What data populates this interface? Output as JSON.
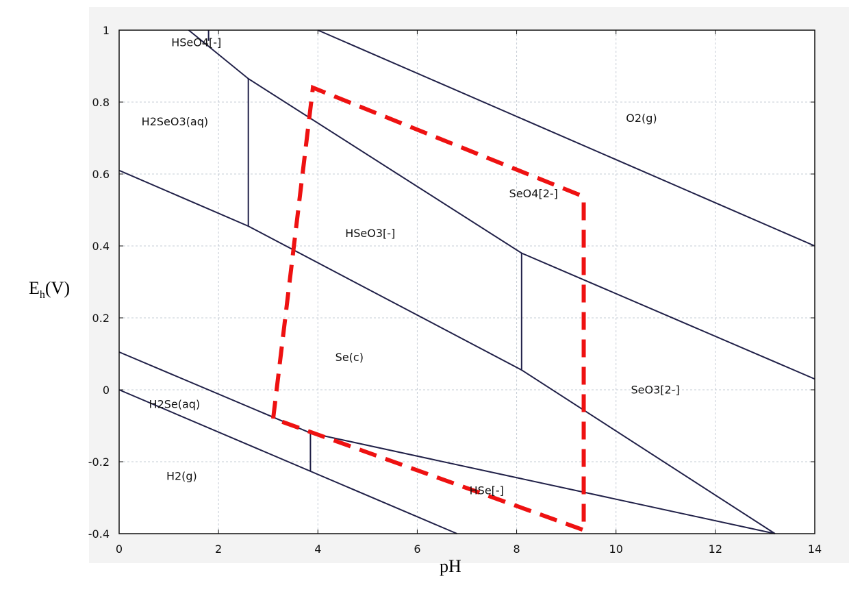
{
  "chart_data": {
    "type": "line",
    "xlabel": "pH",
    "ylabel": {
      "main": "E",
      "sub": "h",
      "rest": "(V)"
    },
    "xlim": [
      0,
      14
    ],
    "ylim": [
      -0.4,
      1.0
    ],
    "x_ticks": [
      0,
      2,
      4,
      6,
      8,
      10,
      12,
      14
    ],
    "x_tick_labels": [
      "0",
      "2",
      "4",
      "6",
      "8",
      "10",
      "12",
      "14"
    ],
    "y_ticks": [
      -0.4,
      -0.2,
      0,
      0.2,
      0.4,
      0.6,
      0.8,
      1.0
    ],
    "y_tick_labels": [
      "-0.4",
      "-0.2",
      "0",
      "0.2",
      "0.4",
      "0.6",
      "0.8",
      "1"
    ],
    "grid": true,
    "line_color": "#202048",
    "highlight_color": "#ee1111",
    "boundaries": [
      {
        "x": [
          4.0,
          14.0
        ],
        "y": [
          1.0,
          0.4
        ]
      },
      {
        "x": [
          1.4,
          2.6,
          8.1,
          14.0
        ],
        "y": [
          1.0,
          0.865,
          0.38,
          0.03
        ]
      },
      {
        "x": [
          0.0,
          2.6,
          8.1,
          13.2
        ],
        "y": [
          0.61,
          0.455,
          0.055,
          -0.4
        ]
      },
      {
        "x": [
          0.0,
          3.85,
          13.2
        ],
        "y": [
          0.105,
          -0.12,
          -0.4
        ]
      },
      {
        "x": [
          0.0,
          6.8
        ],
        "y": [
          0.0,
          -0.4
        ]
      },
      {
        "x": [
          1.8,
          1.8
        ],
        "y": [
          1.0,
          0.97
        ]
      },
      {
        "x": [
          2.6,
          2.6
        ],
        "y": [
          0.865,
          0.455
        ]
      },
      {
        "x": [
          8.1,
          8.1
        ],
        "y": [
          0.38,
          0.055
        ]
      },
      {
        "x": [
          3.85,
          3.85
        ],
        "y": [
          -0.12,
          -0.225
        ]
      }
    ],
    "highlight_polygon": {
      "x": [
        3.1,
        3.9,
        9.3,
        9.35,
        9.35,
        3.1
      ],
      "y": [
        -0.08,
        0.84,
        0.54,
        0.53,
        -0.39,
        -0.08
      ]
    },
    "region_labels": [
      {
        "text": "HSeO4[-]",
        "x": 1.05,
        "y": 0.955
      },
      {
        "text": "H2SeO3(aq)",
        "x": 0.45,
        "y": 0.735
      },
      {
        "text": "O2(g)",
        "x": 10.2,
        "y": 0.745
      },
      {
        "text": "SeO4[2-]",
        "x": 7.85,
        "y": 0.535
      },
      {
        "text": "HSeO3[-]",
        "x": 4.55,
        "y": 0.425
      },
      {
        "text": "Se(c)",
        "x": 4.35,
        "y": 0.08
      },
      {
        "text": "SeO3[2-]",
        "x": 10.3,
        "y": -0.01
      },
      {
        "text": "H2Se(aq)",
        "x": 0.6,
        "y": -0.05
      },
      {
        "text": "H2(g)",
        "x": 0.95,
        "y": -0.25
      },
      {
        "text": "HSe[-]",
        "x": 7.05,
        "y": -0.29
      }
    ]
  }
}
